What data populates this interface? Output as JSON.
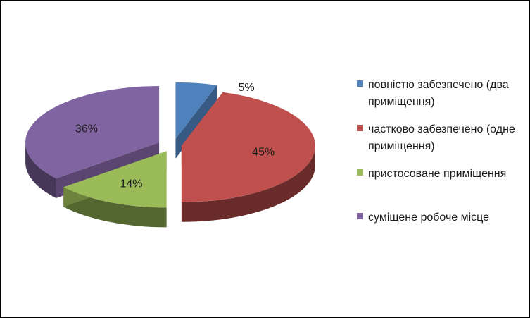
{
  "chart_data": {
    "type": "pie",
    "style": "3d-exploded",
    "slices": [
      {
        "label": "повністю забезпечено (два приміщення)",
        "value": 5,
        "display": "5%",
        "color": "#4F81BD"
      },
      {
        "label": "частково забезпечено (одне приміщення)",
        "value": 45,
        "display": "45%",
        "color": "#C0504D"
      },
      {
        "label": "пристосоване приміщення",
        "value": 14,
        "display": "14%",
        "color": "#9BBB59"
      },
      {
        "label": "суміщене робоче місце",
        "value": 36,
        "display": "36%",
        "color": "#8064A2"
      }
    ],
    "legend_position": "right"
  }
}
